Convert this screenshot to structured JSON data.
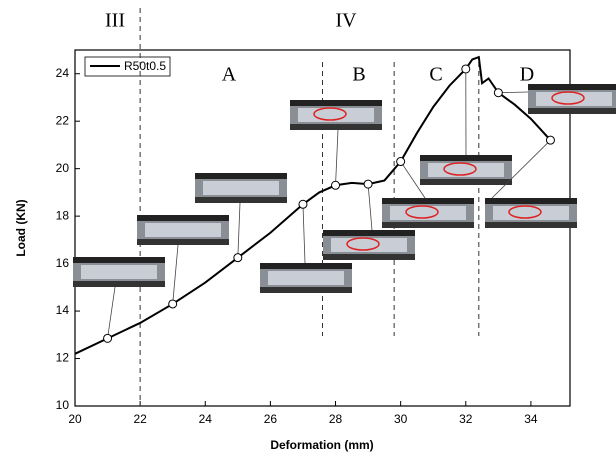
{
  "chart_data": {
    "type": "line",
    "xlabel": "Deformation (mm)",
    "ylabel": "Load (KN)",
    "xlim": [
      20,
      35.2
    ],
    "ylim": [
      10,
      25
    ],
    "xticks": [
      20,
      22,
      24,
      26,
      28,
      30,
      32,
      34
    ],
    "yticks": [
      10,
      12,
      14,
      16,
      18,
      20,
      22,
      24
    ],
    "series": [
      {
        "name": "R50t0.5",
        "color": "#000000",
        "x": [
          20,
          21,
          22,
          23,
          24,
          25,
          26,
          27,
          27.5,
          28,
          28.5,
          29,
          29.5,
          30,
          30.5,
          31,
          31.5,
          32,
          32.2,
          32.4,
          32.5,
          32.7,
          33,
          33.5,
          34,
          34.6
        ],
        "values": [
          12.2,
          12.85,
          13.5,
          14.3,
          15.2,
          16.25,
          17.3,
          18.5,
          19.0,
          19.3,
          19.4,
          19.35,
          19.5,
          20.3,
          21.5,
          22.6,
          23.5,
          24.2,
          24.6,
          24.7,
          23.6,
          23.8,
          23.2,
          22.7,
          22.1,
          21.2
        ]
      }
    ],
    "points": {
      "x": [
        21,
        23,
        25,
        27,
        28,
        29,
        30,
        32,
        33,
        34.6
      ],
      "y": [
        12.85,
        14.3,
        16.25,
        18.5,
        19.3,
        19.35,
        20.3,
        24.2,
        23.2,
        21.2
      ]
    },
    "vlines": [
      22,
      27.6,
      29.8,
      32.4
    ],
    "regions": [
      "III",
      "IV"
    ],
    "stages": [
      "A",
      "B",
      "C",
      "D"
    ]
  }
}
